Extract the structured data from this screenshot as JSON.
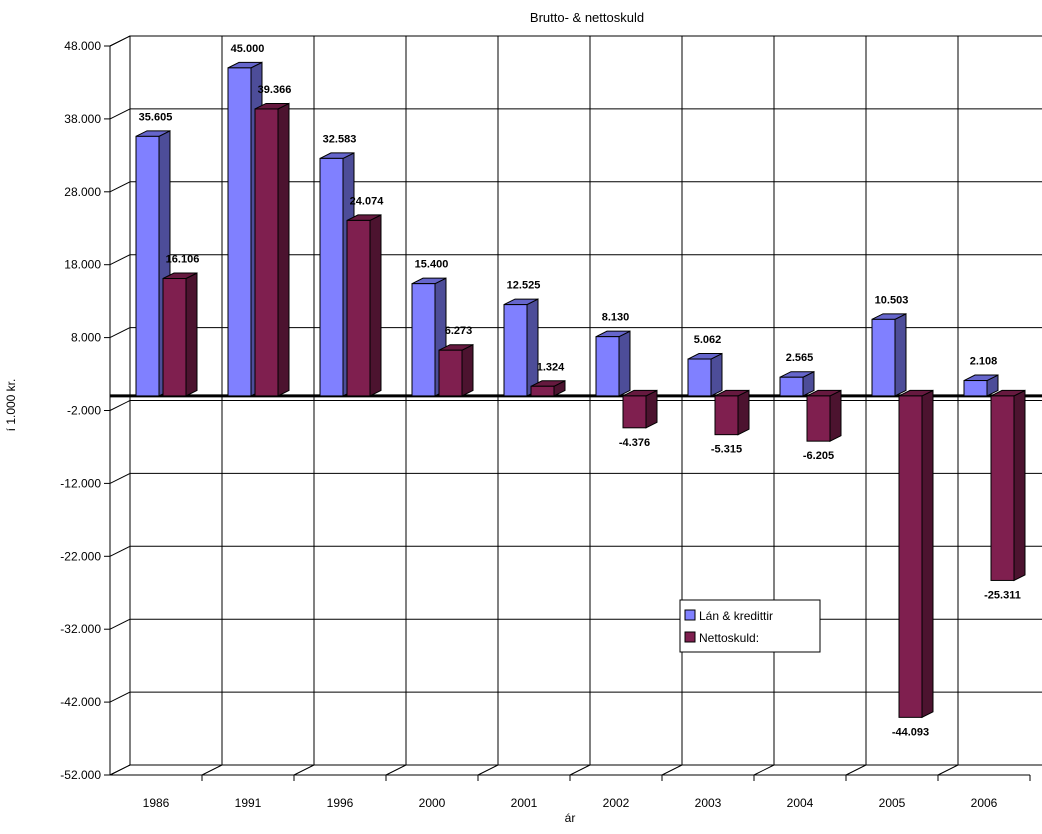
{
  "chart_data": {
    "type": "bar",
    "title": "Brutto- & nettoskuld",
    "xlabel": "ár",
    "ylabel": "í 1.000 kr.",
    "categories": [
      "1986",
      "1991",
      "1996",
      "2000",
      "2001",
      "2002",
      "2003",
      "2004",
      "2005",
      "2006"
    ],
    "series": [
      {
        "name": "Lán & kredittir",
        "color": "#8080ff",
        "values": [
          35605,
          45000,
          32583,
          15400,
          12525,
          8130,
          5062,
          2565,
          10503,
          2108
        ],
        "labels": [
          "35.605",
          "45.000",
          "32.583",
          "15.400",
          "12.525",
          "8.130",
          "5.062",
          "2.565",
          "10.503",
          "2.108"
        ]
      },
      {
        "name": "Nettoskuld:",
        "color": "#7f1f4f",
        "values": [
          16106,
          39366,
          24074,
          6273,
          1324,
          -4376,
          -5315,
          -6205,
          -44093,
          -25311
        ],
        "labels": [
          "16.106",
          "39.366",
          "24.074",
          "6.273",
          "1.324",
          "-4.376",
          "-5.315",
          "-6.205",
          "-44.093",
          "-25.311"
        ]
      }
    ],
    "yticks": [
      48000,
      38000,
      28000,
      18000,
      8000,
      -2000,
      -12000,
      -22000,
      -32000,
      -42000,
      -52000
    ],
    "ytick_labels": [
      "48.000",
      "38.000",
      "28.000",
      "18.000",
      "8.000",
      "-2.000",
      "-12.000",
      "-22.000",
      "-32.000",
      "-42.000",
      "-52.000"
    ],
    "ylim": [
      -52000,
      48000
    ],
    "grid": true,
    "legend_position": "lower-right, inside plot",
    "style": "3d-clustered-column"
  }
}
